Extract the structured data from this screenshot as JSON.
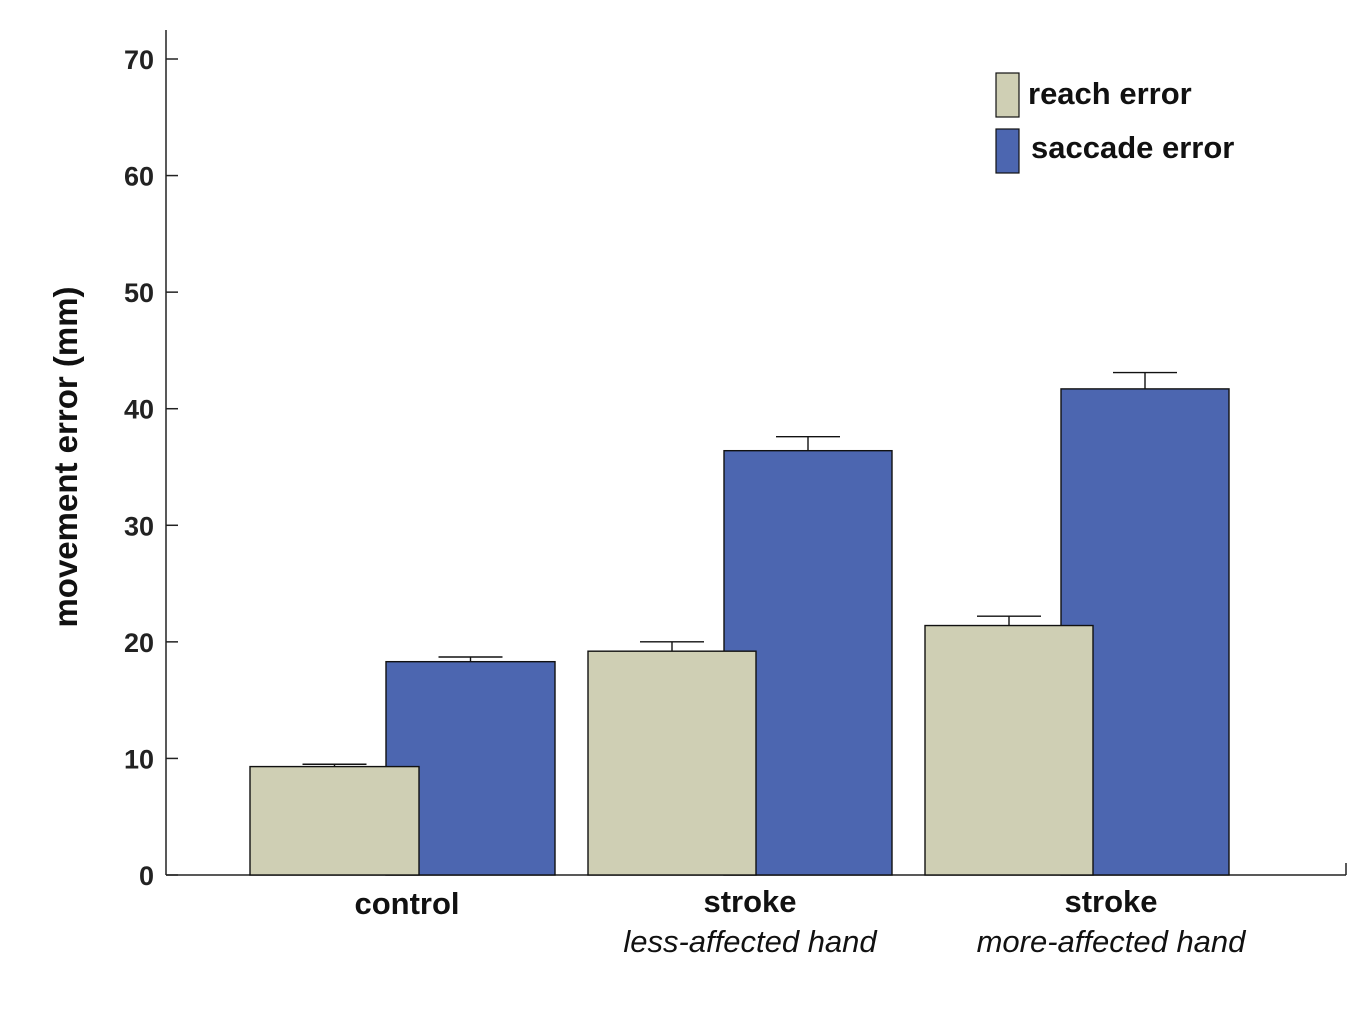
{
  "chart_data": {
    "type": "bar",
    "title": "",
    "xlabel": "",
    "ylabel": "movement error (mm)",
    "ylim": [
      0,
      70
    ],
    "yticks": [
      0,
      10,
      20,
      30,
      40,
      50,
      60,
      70
    ],
    "grid": false,
    "legend_position": "top-right",
    "categories": [
      {
        "label": "control",
        "sublabel": ""
      },
      {
        "label": "stroke",
        "sublabel": "less-affected hand"
      },
      {
        "label": "stroke",
        "sublabel": "more-affected hand"
      }
    ],
    "series": [
      {
        "name": "reach error",
        "color": "#cfcfb4",
        "values": [
          9.3,
          19.2,
          21.4
        ],
        "errors": [
          0.2,
          0.8,
          0.8
        ]
      },
      {
        "name": "saccade error",
        "color": "#4c66b0",
        "values": [
          18.3,
          36.4,
          41.7
        ],
        "errors": [
          0.4,
          1.2,
          1.4
        ]
      }
    ]
  }
}
